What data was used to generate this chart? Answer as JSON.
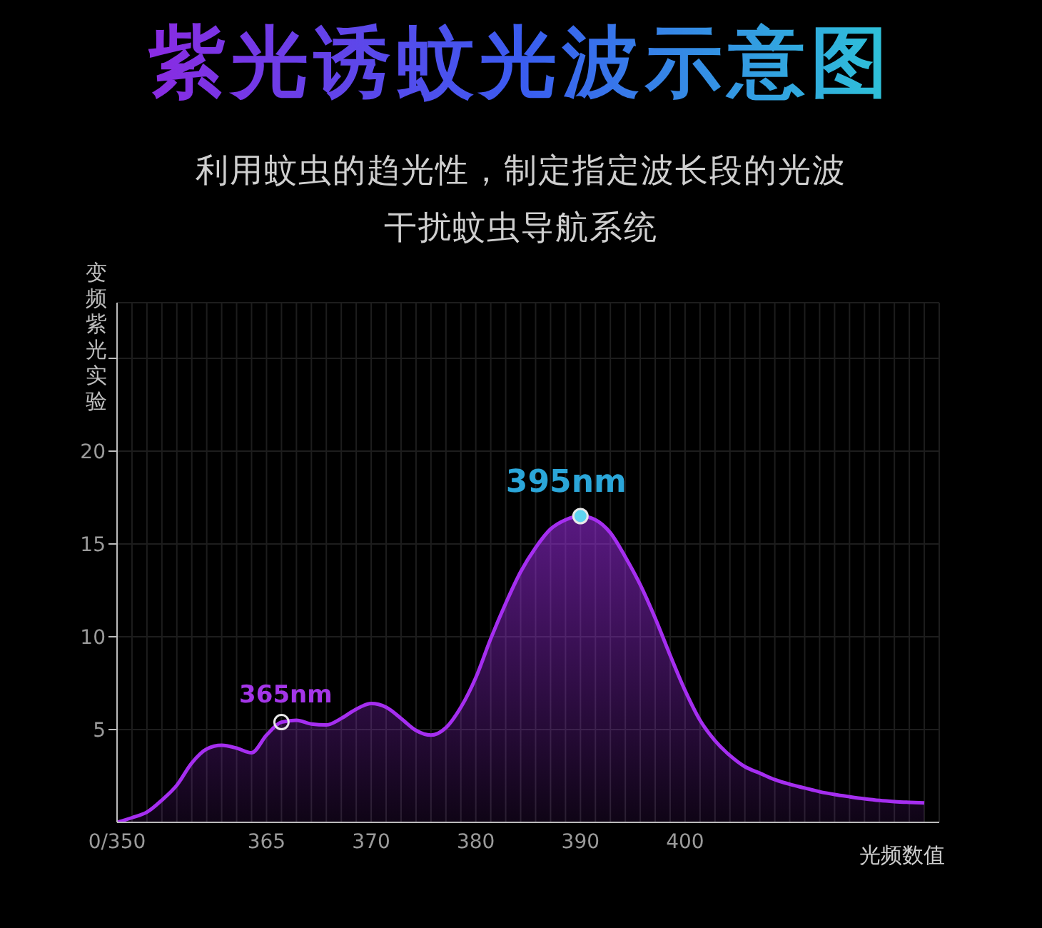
{
  "chart_data": {
    "type": "area",
    "title": "紫光诱蚊光波示意图",
    "subtitle": "利用蚊虫的趋光性，制定指定波长段的光波干扰蚊虫导航系统",
    "ylabel": "变频紫光实验",
    "xlabel": "光频数值",
    "categories": [
      "0/350",
      null,
      null,
      null,
      null,
      null,
      null,
      null,
      null,
      null,
      "365",
      null,
      null,
      null,
      null,
      null,
      null,
      "370",
      null,
      null,
      null,
      null,
      null,
      null,
      "380",
      null,
      null,
      null,
      null,
      null,
      null,
      "390",
      null,
      null,
      null,
      null,
      null,
      null,
      "400",
      null,
      null,
      null,
      null,
      null,
      null,
      null,
      null,
      null,
      null,
      null,
      null,
      null,
      null,
      null,
      null,
      null
    ],
    "series": [
      {
        "color": "#a52ef0",
        "values": [
          0,
          0.25,
          0.55,
          1.2,
          2.0,
          3.2,
          3.95,
          4.15,
          4.0,
          3.75,
          4.7,
          5.4,
          5.5,
          5.3,
          5.25,
          5.6,
          6.1,
          6.4,
          6.2,
          5.6,
          4.95,
          4.7,
          5.1,
          6.2,
          7.8,
          9.9,
          11.8,
          13.5,
          14.8,
          15.8,
          16.3,
          16.5,
          16.3,
          15.6,
          14.3,
          12.8,
          11.0,
          9.0,
          7.1,
          5.5,
          4.4,
          3.6,
          3.0,
          2.65,
          2.3,
          2.05,
          1.85,
          1.65,
          1.5,
          1.38,
          1.27,
          1.18,
          1.12,
          1.08,
          1.05,
          null
        ]
      }
    ],
    "ylim": [
      0,
      28
    ],
    "yticks": [
      5,
      10,
      15,
      20,
      {
        "value": 25,
        "label": null
      }
    ],
    "grid": true,
    "marker": "none",
    "annotations": [
      {
        "text": "365nm",
        "y": 5.4
      },
      {
        "text": "395nm",
        "y": 16.5
      }
    ]
  }
}
